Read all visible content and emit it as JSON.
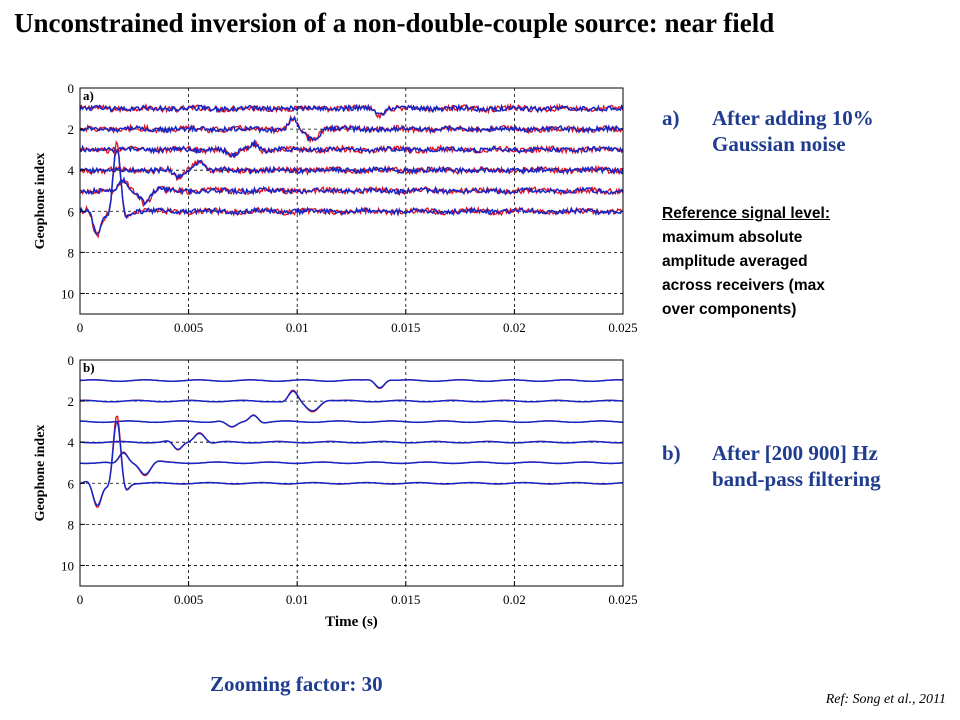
{
  "slide": {
    "title": "Unconstrained inversion of a non-double-couple source: near field",
    "caption_a_marker": "a)",
    "caption_a": "After adding 10%\nGaussian noise",
    "reference_heading": "Reference signal level:",
    "reference_body": "maximum absolute\namplitude averaged\nacross receivers (max\nover components)",
    "caption_b_marker": "b)",
    "caption_b": "After [200 900] Hz\nband-pass filtering",
    "zoom": "Zooming factor: 30",
    "citation": "Ref: Song et al., 2011"
  },
  "colors": {
    "observed": "#e0101e",
    "synthetic": "#1426c8",
    "caption": "#1f3c8f"
  },
  "chart_data": [
    {
      "type": "line",
      "panel_label": "a)",
      "xlabel": "",
      "ylabel": "Geophone index",
      "xlim": [
        0,
        0.025
      ],
      "ylim": [
        11,
        0
      ],
      "xticks": [
        "0",
        "0.005",
        "0.01",
        "0.015",
        "0.02",
        "0.025"
      ],
      "yticks": [
        "0",
        "2",
        "4",
        "6",
        "8",
        "10"
      ],
      "grid": true,
      "baselines": [
        1,
        2,
        3,
        4,
        5,
        6
      ],
      "noisy": true,
      "series": [
        {
          "role": "observed",
          "color": "#e0101e"
        },
        {
          "role": "synthetic",
          "color": "#1426c8"
        }
      ]
    },
    {
      "type": "line",
      "panel_label": "b)",
      "xlabel": "Time (s)",
      "ylabel": "Geophone index",
      "xlim": [
        0,
        0.025
      ],
      "ylim": [
        11,
        0
      ],
      "xticks": [
        "0",
        "0.005",
        "0.01",
        "0.015",
        "0.02",
        "0.025"
      ],
      "yticks": [
        "0",
        "2",
        "4",
        "6",
        "8",
        "10"
      ],
      "grid": true,
      "baselines": [
        1,
        2,
        3,
        4,
        5,
        6
      ],
      "noisy": false,
      "series": [
        {
          "role": "observed",
          "color": "#e0101e"
        },
        {
          "role": "synthetic",
          "color": "#1426c8"
        }
      ]
    }
  ]
}
